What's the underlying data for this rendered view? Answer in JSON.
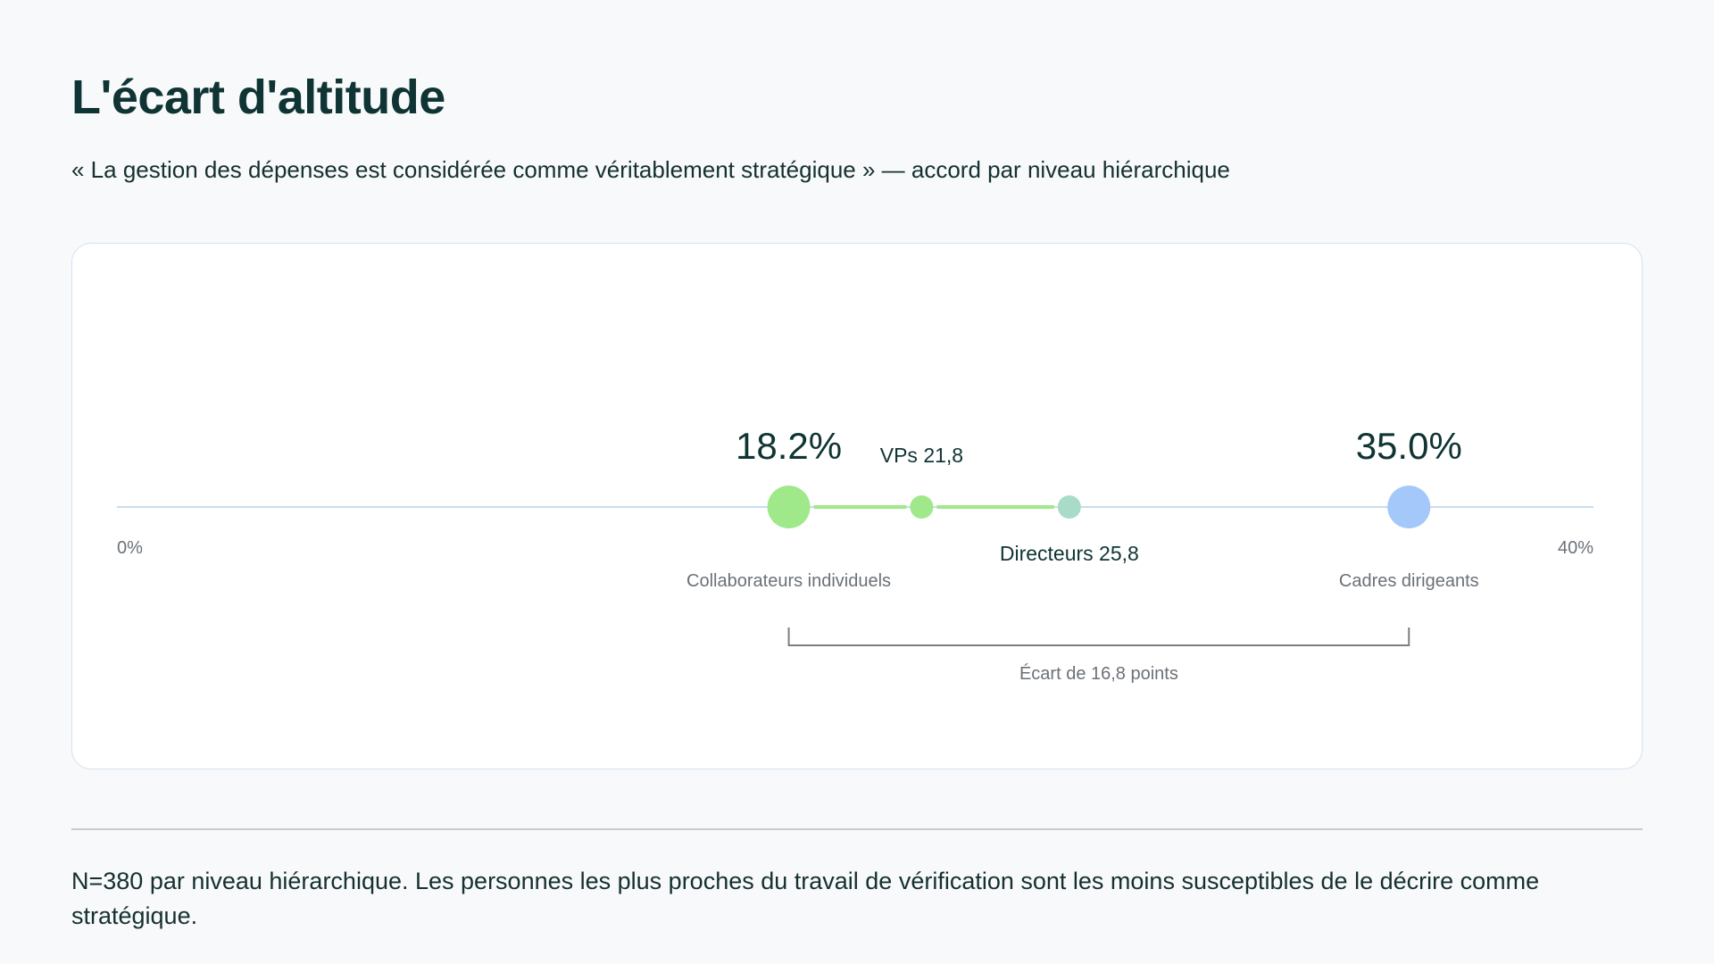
{
  "header": {
    "title": "L'écart d'altitude",
    "subtitle": "« La gestion des dépenses est considérée comme véritablement stratégique » — accord par niveau hiérarchique"
  },
  "chart_data": {
    "type": "scatter",
    "title": "L'écart d'altitude",
    "subtitle": "« La gestion des dépenses est considérée comme véritablement stratégique » — accord par niveau hiérarchique",
    "xlim": [
      0,
      40
    ],
    "tick_labels": [
      "0%",
      "40%"
    ],
    "grid": false,
    "legend": "none",
    "points": [
      {
        "label": "Collaborateurs individuels",
        "value": 18.2,
        "value_label": "18.2%",
        "color": "#9fe98a",
        "size": "large"
      },
      {
        "label": "VPs 21,8",
        "value": 21.8,
        "color": "#9fe98a",
        "size": "small"
      },
      {
        "label": "Directeurs 25,8",
        "value": 25.8,
        "color": "#a8dcc8",
        "size": "small"
      },
      {
        "label": "Cadres dirigeants",
        "value": 35.0,
        "value_label": "35.0%",
        "color": "#a4c8fa",
        "size": "large"
      }
    ],
    "gap": {
      "from": 18.2,
      "to": 35.0,
      "label": "Écart de 16,8 points"
    }
  },
  "footer": {
    "note": "N=380 par niveau hiérarchique. Les personnes les plus proches du travail de vérification sont les moins susceptibles de le décrire comme stratégique."
  },
  "colors": {
    "ink": "#0f3433",
    "muted": "#6b7178",
    "axis": "#c9dced",
    "green": "#9fe98a",
    "teal": "#a8dcc8",
    "blue": "#a4c8fa"
  }
}
